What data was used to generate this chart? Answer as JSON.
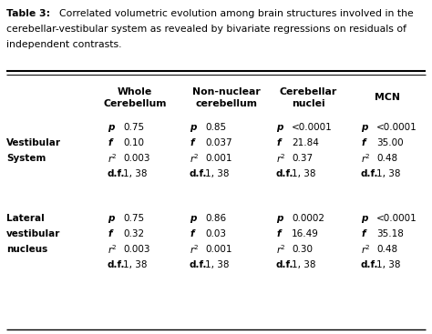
{
  "title_bold": "Table 3:",
  "title_lines": [
    "Correlated volumetric evolution among brain structures involved in the",
    "cerebellar-vestibular system as revealed by bivariate regressions on residuals of",
    "independent contrasts."
  ],
  "col_headers": [
    [
      "Whole",
      "Cerebellum"
    ],
    [
      "Non-nuclear",
      "cerebellum"
    ],
    [
      "Cerebellar",
      "nuclei"
    ],
    [
      "MCN"
    ]
  ],
  "row_labels_g1": [
    "",
    "Vestibular",
    "System",
    ""
  ],
  "row_labels_g2": [
    "Lateral",
    "vestibular",
    "nucleus",
    ""
  ],
  "stats": [
    "p",
    "f",
    "r2",
    "d.f."
  ],
  "group1_data": [
    [
      "0.75",
      "0.10",
      "0.003",
      "1, 38"
    ],
    [
      "0.85",
      "0.037",
      "0.001",
      "1, 38"
    ],
    [
      "<0.0001",
      "21.84",
      "0.37",
      "1, 38"
    ],
    [
      "<0.0001",
      "35.00",
      "0.48",
      "1, 38"
    ]
  ],
  "group2_data": [
    [
      "0.75",
      "0.32",
      "0.003",
      "1, 38"
    ],
    [
      "0.86",
      "0.03",
      "0.001",
      "1, 38"
    ],
    [
      "0.0002",
      "16.49",
      "0.30",
      "1, 38"
    ],
    [
      "<0.0001",
      "35.18",
      "0.48",
      "1, 38"
    ]
  ],
  "bg_color": "#ffffff",
  "text_color": "#000000",
  "title_fontsize": 7.8,
  "body_fontsize": 7.5,
  "hdr_fontsize": 7.8
}
